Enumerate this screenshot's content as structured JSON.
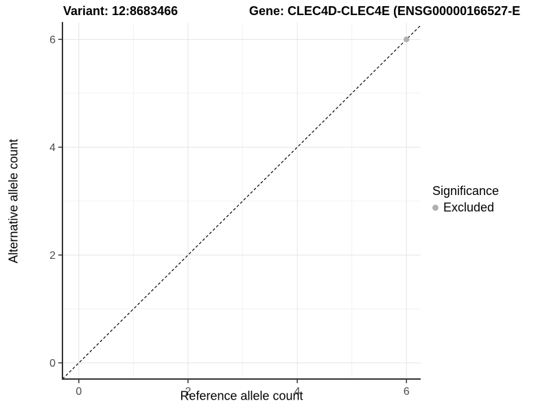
{
  "chart_data": {
    "type": "scatter",
    "title_left": "Variant: 12:8683466",
    "title_right": "Gene: CLEC4D-CLEC4E (ENSG00000166527-E",
    "xlabel": "Reference allele count",
    "ylabel": "Alternative allele count",
    "xlim": [
      -0.3,
      6.26
    ],
    "ylim": [
      -0.3,
      6.31
    ],
    "x_tick_values": [
      0,
      2,
      4,
      6
    ],
    "x_tick_labels": [
      "0",
      "2",
      "4",
      "6"
    ],
    "y_tick_values": [
      0,
      2,
      4,
      6
    ],
    "y_tick_labels": [
      "0",
      "2",
      "4",
      "6"
    ],
    "grid": {
      "on": true,
      "majors_x": [
        0,
        2,
        4,
        6
      ],
      "minors_x": [
        1,
        3,
        5
      ],
      "majors_y": [
        0,
        2,
        4,
        6
      ],
      "minors_y": [
        1,
        3,
        5
      ],
      "major_color": "#e5e5e5",
      "minor_color": "#f2f2f2"
    },
    "identity_line": {
      "intercept": 0,
      "slope": 1,
      "style": "dashed",
      "color": "#000000"
    },
    "series": [
      {
        "name": "Excluded",
        "color": "#b0b0b0",
        "points": [
          {
            "x": 6,
            "y": 6
          }
        ]
      }
    ],
    "legend": {
      "title": "Significance",
      "position": "right",
      "items": [
        {
          "label": "Excluded",
          "color": "#b0b0b0",
          "marker": "circle"
        }
      ]
    },
    "colors": {
      "axis_line": "#333333",
      "tick_mark": "#333333",
      "tick_label": "#4d4d4d",
      "panel_background": "#ffffff"
    }
  }
}
